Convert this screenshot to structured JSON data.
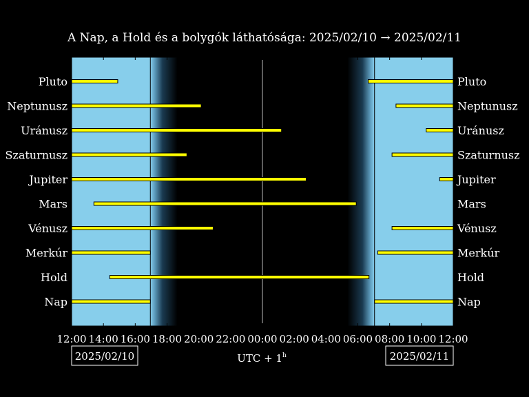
{
  "chart_data": {
    "type": "bar",
    "title": "A Nap, a Hold és a bolygók láthatósága: 2025/02/10 → 2025/02/11",
    "xlabel_main": "UTC + 1",
    "xlabel_sup": "h",
    "date_left": "2025/02/10",
    "date_right": "2025/02/11",
    "x_range_hours": [
      12,
      36
    ],
    "x_ticks": [
      {
        "h": 12,
        "label": "12:00"
      },
      {
        "h": 14,
        "label": "14:00"
      },
      {
        "h": 16,
        "label": "16:00"
      },
      {
        "h": 18,
        "label": "18:00"
      },
      {
        "h": 20,
        "label": "20:00"
      },
      {
        "h": 22,
        "label": "22:00"
      },
      {
        "h": 24,
        "label": "00:00"
      },
      {
        "h": 26,
        "label": "02:00"
      },
      {
        "h": 28,
        "label": "04:00"
      },
      {
        "h": 30,
        "label": "06:00"
      },
      {
        "h": 32,
        "label": "08:00"
      },
      {
        "h": 34,
        "label": "10:00"
      },
      {
        "h": 36,
        "label": "12:00"
      }
    ],
    "midnight_hour": 24,
    "sunset_hour": 16.95,
    "sunrise_hour": 31.05,
    "twilight_duration_hours": 1.7,
    "colors": {
      "day": "#87ceeb",
      "night": "#000000",
      "bar": "#ffff00",
      "bar_edge": "#000000",
      "frame": "#000000"
    },
    "bodies": [
      {
        "name": "Pluto",
        "intervals": [
          [
            12,
            14.9
          ],
          [
            30.65,
            36
          ]
        ]
      },
      {
        "name": "Neptunusz",
        "intervals": [
          [
            12,
            20.15
          ],
          [
            32.4,
            36
          ]
        ]
      },
      {
        "name": "Uránusz",
        "intervals": [
          [
            12,
            25.2
          ],
          [
            34.3,
            36
          ]
        ]
      },
      {
        "name": "Szaturnusz",
        "intervals": [
          [
            12,
            19.25
          ],
          [
            32.15,
            36
          ]
        ]
      },
      {
        "name": "Jupiter",
        "intervals": [
          [
            12,
            26.75
          ],
          [
            35.15,
            36
          ]
        ]
      },
      {
        "name": "Mars",
        "intervals": [
          [
            13.4,
            29.9
          ]
        ]
      },
      {
        "name": "Vénusz",
        "intervals": [
          [
            12,
            20.9
          ],
          [
            32.15,
            36
          ]
        ]
      },
      {
        "name": "Merkúr",
        "intervals": [
          [
            12,
            16.95
          ],
          [
            31.25,
            36
          ]
        ]
      },
      {
        "name": "Hold",
        "intervals": [
          [
            14.4,
            30.7
          ]
        ]
      },
      {
        "name": "Nap",
        "intervals": [
          [
            12,
            16.95
          ],
          [
            31.05,
            36
          ]
        ]
      }
    ]
  }
}
